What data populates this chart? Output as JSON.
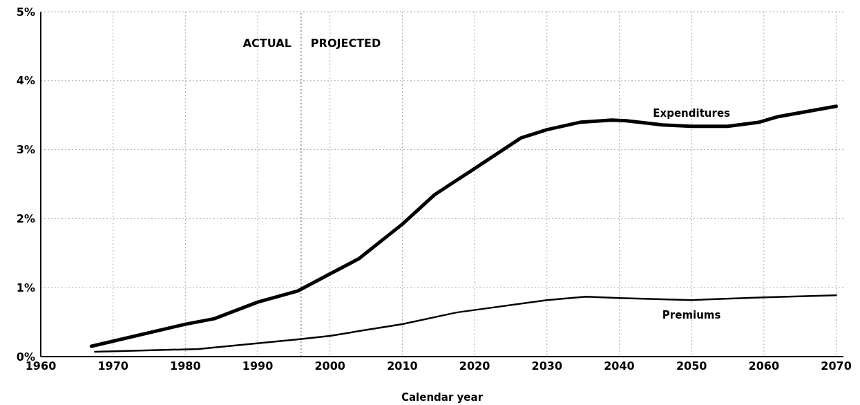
{
  "chart_data": {
    "type": "line",
    "xlabel": "Calendar year",
    "xlim": [
      1960,
      2071
    ],
    "xticks": [
      1960,
      1970,
      1980,
      1990,
      2000,
      2010,
      2020,
      2030,
      2040,
      2050,
      2060,
      2070
    ],
    "ylim": [
      0,
      5
    ],
    "yticks": [
      {
        "value": 0,
        "label": "0%"
      },
      {
        "value": 1,
        "label": "1%"
      },
      {
        "value": 2,
        "label": "2%"
      },
      {
        "value": 3,
        "label": "3%"
      },
      {
        "value": 4,
        "label": "4%"
      },
      {
        "value": 5,
        "label": "5%"
      }
    ],
    "grid": true,
    "marker": "none",
    "line_style": "solid",
    "series": [
      {
        "name": "Expenditures",
        "color": "#000000",
        "x": [
          1967,
          1980,
          1984,
          1990,
          1995.5,
          2000,
          2004,
          2010,
          2014.5,
          2019.6,
          2026.4,
          2030,
          2034.7,
          2039,
          2041,
          2046,
          2050,
          2055,
          2059.4,
          2062,
          2070
        ],
        "values": [
          0.15,
          0.47,
          0.55,
          0.79,
          0.95,
          1.2,
          1.42,
          1.92,
          2.35,
          2.7,
          3.17,
          3.29,
          3.4,
          3.43,
          3.42,
          3.36,
          3.34,
          3.34,
          3.4,
          3.48,
          3.63
        ]
      },
      {
        "name": "Premiums",
        "color": "#000000",
        "x": [
          1967.5,
          1981.8,
          1995.6,
          2000,
          2004,
          2010,
          2017.5,
          2030,
          2035.4,
          2040,
          2050,
          2060,
          2070
        ],
        "values": [
          0.07,
          0.11,
          0.25,
          0.3,
          0.37,
          0.47,
          0.64,
          0.82,
          0.87,
          0.85,
          0.82,
          0.86,
          0.89
        ]
      }
    ],
    "ref_lines": [
      {
        "axis": "x",
        "value": 1996,
        "color": "#888888",
        "line_style": "dotted"
      }
    ],
    "annotations": [
      "ACTUAL",
      "PROJECTED"
    ]
  }
}
